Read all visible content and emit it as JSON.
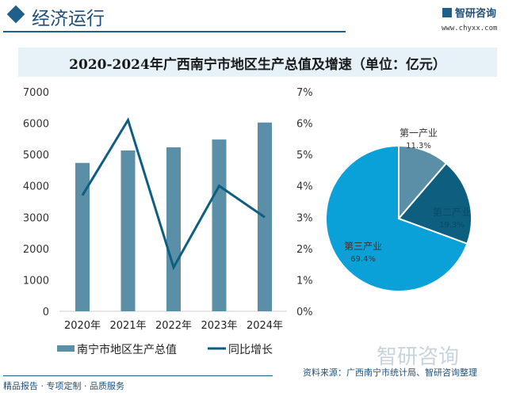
{
  "header": {
    "section_title": "经济运行",
    "logo_text": "智研咨询",
    "url": "www.chyxx.com"
  },
  "chart_title": "2020-2024年广西南宁市地区生产总值及增速（单位：亿元）",
  "colors": {
    "bar": "#5b8fa8",
    "line": "#0e5e7f",
    "pie": [
      "#5b8fa8",
      "#0e5e7f",
      "#0aa0d8"
    ]
  },
  "chart_data": [
    {
      "type": "bar+line",
      "categories": [
        "2020年",
        "2021年",
        "2022年",
        "2023年",
        "2024年"
      ],
      "series": [
        {
          "name": "南宁市地区生产总值",
          "type": "bar",
          "axis": "left",
          "values": [
            4734,
            5130,
            5230,
            5480,
            6022
          ]
        },
        {
          "name": "同比增长",
          "type": "line",
          "axis": "right",
          "values": [
            3.7,
            6.1,
            1.4,
            4.0,
            3.0
          ]
        }
      ],
      "y_left": {
        "range": [
          0,
          7000
        ],
        "ticks": [
          "0",
          "1000",
          "2000",
          "3000",
          "4000",
          "5000",
          "6000",
          "7000"
        ]
      },
      "y_right": {
        "range": [
          0,
          7
        ],
        "ticks": [
          "0%",
          "1%",
          "2%",
          "3%",
          "4%",
          "5%",
          "6%",
          "7%"
        ]
      },
      "legend": "bottom",
      "grid": false
    },
    {
      "type": "pie",
      "labels": [
        "第一产业",
        "第二产业",
        "第三产业"
      ],
      "values": [
        11.3,
        19.3,
        69.4
      ],
      "value_labels": [
        "11.3%",
        "19.3%",
        "69.4%"
      ]
    }
  ],
  "footer": {
    "tagline": "精品报告 · 专项定制 · 品质服务",
    "source": "资料来源：广西南宁市统计局、智研咨询整理",
    "watermark": "智研咨询"
  }
}
